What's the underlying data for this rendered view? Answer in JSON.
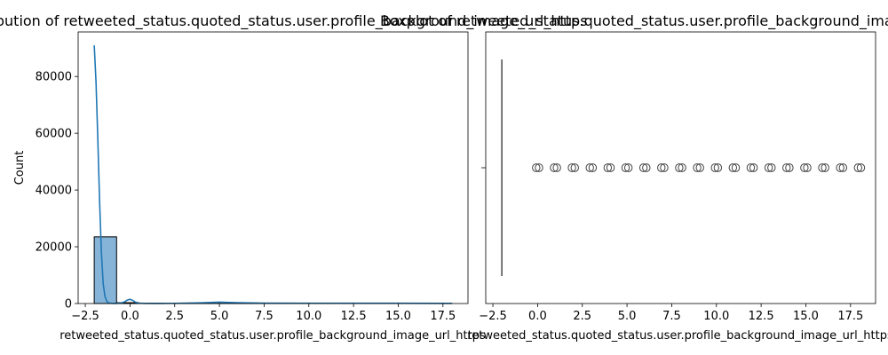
{
  "chart_data": [
    {
      "type": "bar",
      "title": "Distribution of retweeted_status.quoted_status.user.profile_background_image_url_https",
      "xlabel": "retweeted_status.quoted_status.user.profile_background_image_url_https",
      "ylabel": "Count",
      "xlim": [
        -2.9,
        18.9
      ],
      "ylim": [
        0,
        95700
      ],
      "x_ticks": [
        -2.5,
        0.0,
        2.5,
        5.0,
        7.5,
        10.0,
        12.5,
        15.0,
        17.5
      ],
      "x_tick_labels": [
        "−2.5",
        "0.0",
        "2.5",
        "5.0",
        "7.5",
        "10.0",
        "12.5",
        "15.0",
        "17.5"
      ],
      "y_ticks": [
        0,
        20000,
        40000,
        60000,
        80000
      ],
      "y_tick_labels": [
        "0",
        "20000",
        "40000",
        "60000",
        "80000"
      ],
      "bins": [
        {
          "x0": -2.0,
          "x1": -0.75,
          "count": 23500
        },
        {
          "x0": -0.75,
          "x1": 0.5,
          "count": 300
        },
        {
          "x0": 0.5,
          "x1": 1.75,
          "count": 100
        },
        {
          "x0": 1.75,
          "x1": 3.0,
          "count": 50
        },
        {
          "x0": 3.0,
          "x1": 4.25,
          "count": 50
        },
        {
          "x0": 4.25,
          "x1": 5.5,
          "count": 80
        },
        {
          "x0": 5.5,
          "x1": 6.75,
          "count": 60
        },
        {
          "x0": 6.75,
          "x1": 8.0,
          "count": 40
        },
        {
          "x0": 8.0,
          "x1": 9.25,
          "count": 50
        },
        {
          "x0": 9.25,
          "x1": 10.5,
          "count": 40
        },
        {
          "x0": 10.5,
          "x1": 11.75,
          "count": 30
        },
        {
          "x0": 11.75,
          "x1": 13.0,
          "count": 50
        },
        {
          "x0": 13.0,
          "x1": 14.25,
          "count": 40
        },
        {
          "x0": 14.25,
          "x1": 15.5,
          "count": 40
        },
        {
          "x0": 15.5,
          "x1": 16.75,
          "count": 30
        },
        {
          "x0": 16.75,
          "x1": 18.0,
          "count": 60
        }
      ],
      "kde": {
        "x": [
          -2.0,
          -1.9,
          -1.8,
          -1.7,
          -1.6,
          -1.5,
          -1.4,
          -1.3,
          -1.2,
          -1.0,
          -0.8,
          -0.5,
          -0.3,
          -0.15,
          0.0,
          0.15,
          0.3,
          0.5,
          0.8,
          1.5,
          2.5,
          4.0,
          5.0,
          6.0,
          7.5,
          10.0,
          12.5,
          15.0,
          17.5,
          18.0
        ],
        "y": [
          91000,
          78000,
          58000,
          36000,
          18000,
          7000,
          2500,
          800,
          200,
          50,
          30,
          200,
          600,
          1200,
          1500,
          1100,
          500,
          150,
          60,
          30,
          80,
          250,
          500,
          300,
          150,
          120,
          100,
          90,
          70,
          60
        ]
      },
      "bar_color": "#86b4d8",
      "line_color": "#1f77b4"
    },
    {
      "type": "box",
      "title": "Boxplot of retweeted_status.quoted_status.user.profile_background_image_url_https",
      "xlabel": "retweeted_status.quoted_status.user.profile_background_image_url_https",
      "xlim": [
        -2.9,
        18.9
      ],
      "x_ticks": [
        -2.5,
        0.0,
        2.5,
        5.0,
        7.5,
        10.0,
        12.5,
        15.0,
        17.5
      ],
      "x_tick_labels": [
        "−2.5",
        "0.0",
        "2.5",
        "5.0",
        "7.5",
        "10.0",
        "12.5",
        "15.0",
        "17.5"
      ],
      "box": {
        "q1": -2.0,
        "median": -2.0,
        "q3": -2.0,
        "whisker_low": -2.0,
        "whisker_high": -2.0
      },
      "outliers": [
        0,
        1,
        2,
        3,
        4,
        5,
        6,
        7,
        8,
        9,
        10,
        11,
        12,
        13,
        14,
        15,
        16,
        17,
        18
      ],
      "outlier_color": "#444444"
    }
  ]
}
